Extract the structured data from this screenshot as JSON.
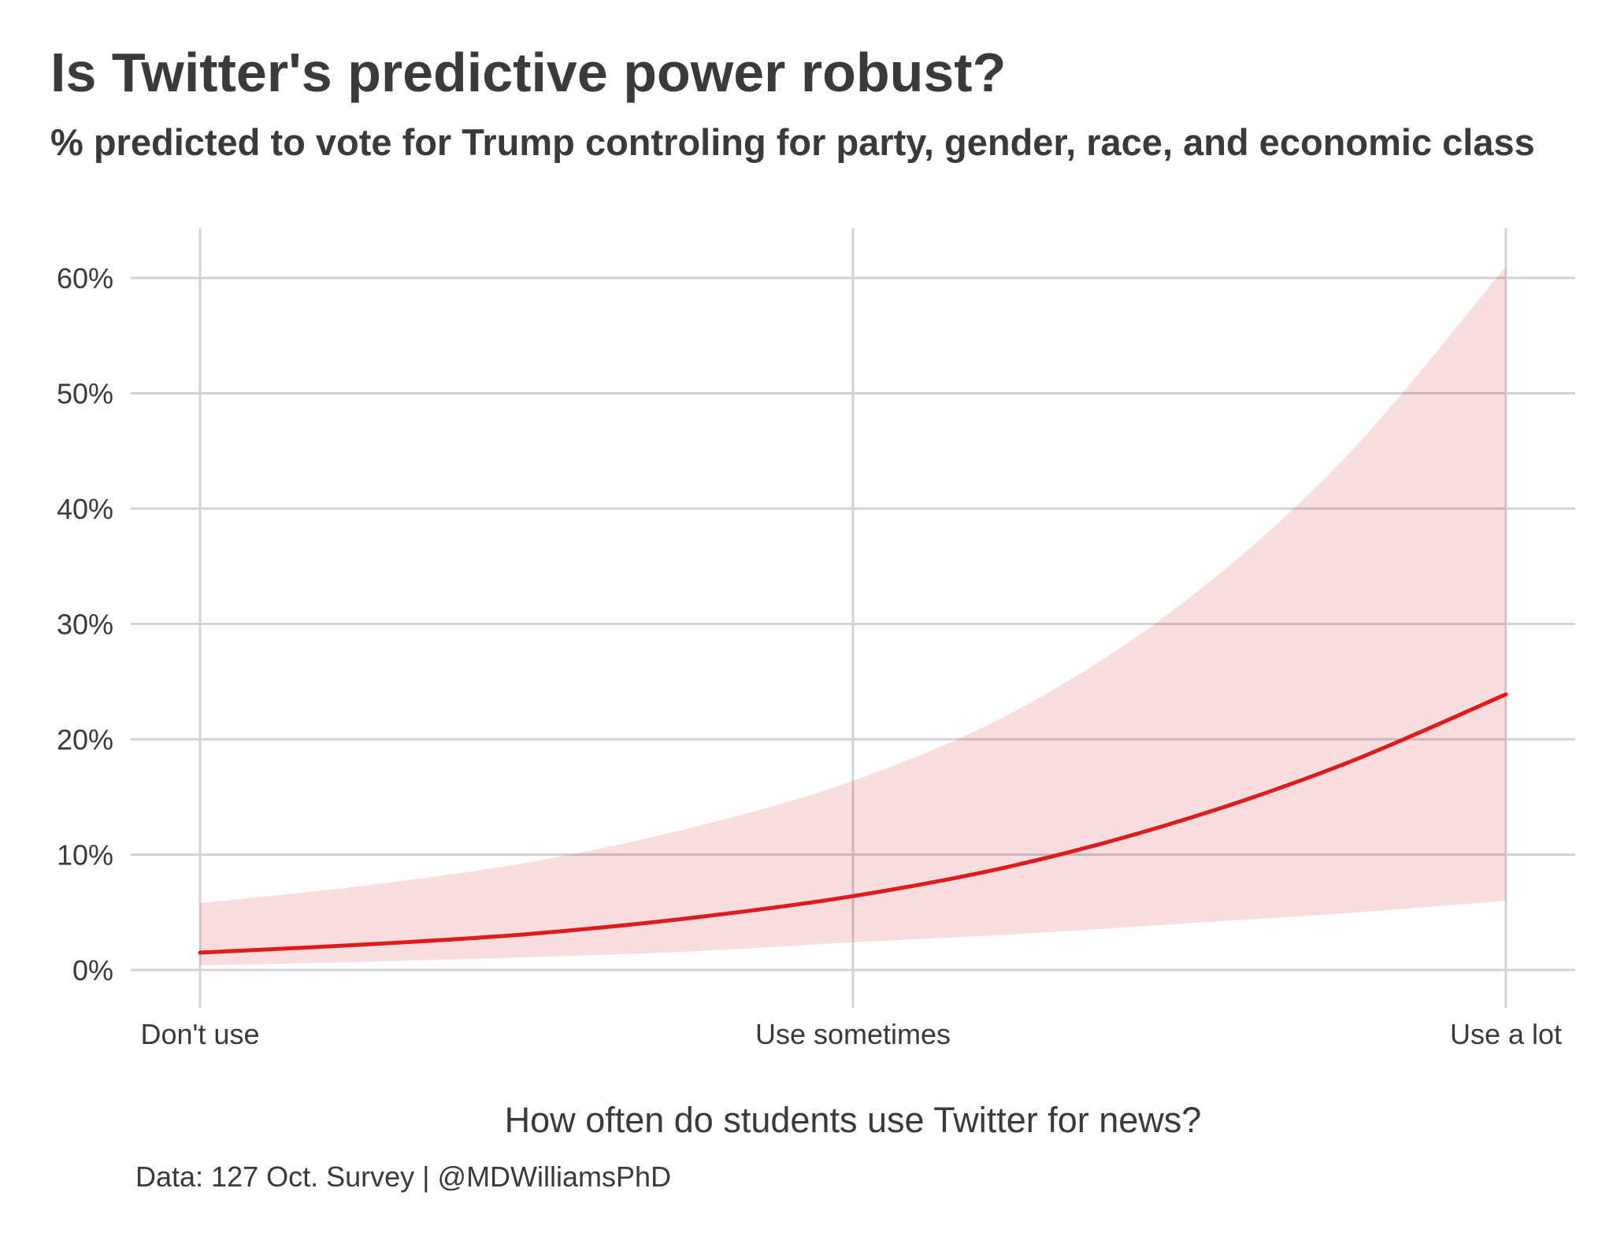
{
  "title": "Is Twitter's predictive power robust?",
  "subtitle": "% predicted to vote for Trump controling for party, gender, race, and economic class",
  "caption": "Data: 127 Oct. Survey | @MDWilliamsPhD",
  "chart_data": {
    "type": "line",
    "title": "Is Twitter's predictive power robust?",
    "subtitle": "% predicted to vote for Trump controling for party, gender, race, and economic class",
    "xlabel": "How often do students use Twitter for news?",
    "ylabel": "",
    "categories": [
      "Don't use",
      "Use sometimes",
      "Use a lot"
    ],
    "x": [
      0,
      0.25,
      0.5,
      0.75,
      1.0,
      1.25,
      1.5,
      1.75,
      2.0
    ],
    "series": [
      {
        "name": "Predicted % voting for Trump",
        "values": [
          1.5,
          2.2,
          3.1,
          4.5,
          6.4,
          9.1,
          12.9,
          17.8,
          23.9
        ],
        "ci_lower": [
          0.4,
          0.7,
          1.1,
          1.6,
          2.4,
          3.1,
          4.0,
          4.9,
          6.0
        ],
        "ci_upper": [
          5.8,
          7.3,
          9.3,
          12.3,
          16.4,
          22.5,
          31.6,
          44.2,
          61.0
        ]
      }
    ],
    "yticks": [
      0,
      10,
      20,
      30,
      40,
      50,
      60
    ],
    "ytick_labels": [
      "0%",
      "10%",
      "20%",
      "30%",
      "40%",
      "50%",
      "60%"
    ],
    "xlim": [
      0,
      2
    ],
    "ylim": [
      0,
      60
    ],
    "grid": true,
    "legend": "none",
    "colors": {
      "line": "#e31a1c",
      "ribbon": "#f9dcdd",
      "grid": "#d3d3d3",
      "text": "#3a3a3a"
    }
  }
}
